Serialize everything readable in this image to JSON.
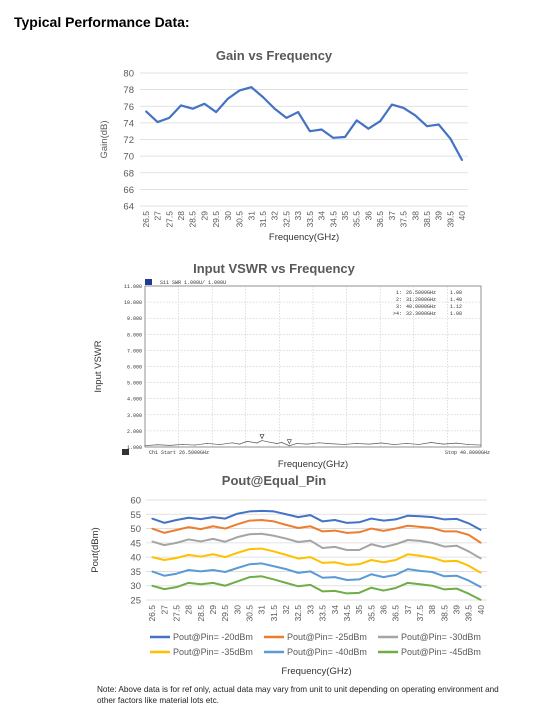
{
  "heading": "Typical Performance Data:",
  "note": "Note: Above data is for ref only, actual data may vary from unit to unit depending on operating environment and other factors like material lots etc.",
  "colors": {
    "gain_line": "#4472c4",
    "grid": "#d9d9d9",
    "axis_text": "#595959",
    "series": [
      "#4472c4",
      "#ed7d31",
      "#a5a5a5",
      "#ffc000",
      "#5b9bd5",
      "#70ad47"
    ]
  },
  "chart_data": [
    {
      "type": "line",
      "title": "Gain vs Frequency",
      "xlabel": "Frequency(GHz)",
      "ylabel": "Gain(dB)",
      "ylim": [
        64,
        80
      ],
      "yticks": [
        64,
        66,
        68,
        70,
        72,
        74,
        76,
        78,
        80
      ],
      "grid": true,
      "categories": [
        "26.5",
        "27",
        "27.5",
        "28",
        "28.5",
        "29",
        "29.5",
        "30",
        "30.5",
        "31",
        "31.5",
        "32",
        "32.5",
        "33",
        "33.5",
        "34",
        "34.5",
        "35",
        "35.5",
        "36",
        "36.5",
        "37",
        "37.5",
        "38",
        "38.5",
        "39",
        "39.5",
        "40"
      ],
      "series": [
        {
          "values": [
            75.4,
            74.1,
            74.6,
            76.1,
            75.7,
            76.3,
            75.3,
            76.9,
            77.9,
            78.3,
            77.1,
            75.7,
            74.6,
            75.3,
            73.0,
            73.2,
            72.2,
            72.3,
            74.3,
            73.3,
            74.2,
            76.2,
            75.8,
            74.9,
            73.6,
            73.8,
            72.1,
            69.5
          ]
        }
      ]
    },
    {
      "type": "line",
      "title": "Input VSWR vs Frequency",
      "xlabel": "Frequency(GHz)",
      "ylabel": "Input VSWR",
      "ylim": [
        1,
        11
      ],
      "yticks": [
        "1.000",
        "2.000",
        "3.000",
        "4.000",
        "5.000",
        "6.000",
        "7.000",
        "8.000",
        "9.000",
        "10.000",
        "11.000"
      ],
      "grid": true,
      "header": "S11 SWR 1.000U/ 1.000U",
      "start_label": "Ch1 Start 26.5000GHz",
      "stop_label": "Stop 40.0000GHz",
      "markers": [
        {
          "id": "1:",
          "freq": "26.5000GHz",
          "value": "1.08"
        },
        {
          "id": "2:",
          "freq": "31.2000GHz",
          "value": "1.40"
        },
        {
          "id": "3:",
          "freq": "40.0000GHz",
          "value": "1.12"
        },
        {
          "id": ">4:",
          "freq": "32.3000GHz",
          "value": "1.08"
        }
      ],
      "x": [
        26.5,
        27.0,
        27.5,
        28.0,
        28.5,
        29.0,
        29.5,
        30.0,
        30.3,
        30.6,
        31.0,
        31.2,
        31.5,
        31.8,
        32.0,
        32.3,
        32.6,
        33.0,
        33.5,
        34.0,
        34.5,
        35.0,
        35.5,
        36.0,
        36.5,
        37.0,
        37.5,
        38.0,
        38.5,
        39.0,
        39.5,
        40.0
      ],
      "series": [
        {
          "values": [
            1.08,
            1.14,
            1.1,
            1.16,
            1.12,
            1.22,
            1.15,
            1.26,
            1.18,
            1.35,
            1.25,
            1.4,
            1.3,
            1.22,
            1.28,
            1.08,
            1.22,
            1.18,
            1.26,
            1.2,
            1.16,
            1.22,
            1.18,
            1.25,
            1.15,
            1.22,
            1.16,
            1.28,
            1.18,
            1.24,
            1.15,
            1.12
          ]
        }
      ]
    },
    {
      "type": "line",
      "title": "Pout@Equal_Pin",
      "xlabel": "Frequency(GHz)",
      "ylabel": "Pout(dBm)",
      "ylim": [
        25,
        60
      ],
      "yticks": [
        25,
        30,
        35,
        40,
        45,
        50,
        55,
        60
      ],
      "grid": true,
      "categories": [
        "26.5",
        "27",
        "27.5",
        "28",
        "28.5",
        "29",
        "29.5",
        "30",
        "30.5",
        "31",
        "31.5",
        "32",
        "32.5",
        "33",
        "33.5",
        "34",
        "34.5",
        "35",
        "35.5",
        "36",
        "36.5",
        "37",
        "37.5",
        "38",
        "38.5",
        "39",
        "39.5",
        "40"
      ],
      "series": [
        {
          "name": "Pout@Pin= -20dBm",
          "values": [
            53.5,
            52.0,
            53.0,
            53.8,
            53.3,
            54.0,
            53.5,
            55.2,
            56.0,
            56.2,
            56.0,
            55.0,
            54.0,
            54.7,
            52.5,
            53.0,
            52.0,
            52.2,
            53.5,
            52.8,
            53.2,
            54.5,
            54.3,
            54.0,
            53.2,
            53.4,
            51.8,
            49.5
          ]
        },
        {
          "name": "Pout@Pin= -25dBm",
          "values": [
            50.0,
            48.5,
            49.5,
            50.5,
            49.8,
            50.8,
            50.0,
            51.5,
            52.8,
            53.0,
            52.5,
            51.3,
            50.2,
            50.8,
            49.0,
            49.3,
            48.5,
            48.7,
            50.0,
            49.2,
            50.0,
            51.0,
            50.6,
            50.2,
            49.0,
            49.0,
            47.8,
            45.0
          ]
        },
        {
          "name": "Pout@Pin= -30dBm",
          "values": [
            45.5,
            44.2,
            45.0,
            46.2,
            45.5,
            46.4,
            45.4,
            47.0,
            48.0,
            48.2,
            47.5,
            46.5,
            45.3,
            45.8,
            43.2,
            43.6,
            42.5,
            42.5,
            44.5,
            43.5,
            44.5,
            46.0,
            45.7,
            45.0,
            43.7,
            44.0,
            42.0,
            39.5
          ]
        },
        {
          "name": "Pout@Pin= -35dBm",
          "values": [
            40.0,
            39.0,
            39.7,
            40.8,
            40.2,
            41.0,
            40.0,
            41.5,
            42.8,
            43.0,
            42.0,
            40.8,
            39.5,
            40.0,
            38.0,
            38.2,
            37.3,
            37.5,
            39.0,
            38.2,
            39.0,
            41.0,
            40.5,
            39.8,
            38.5,
            38.7,
            37.0,
            34.5
          ]
        },
        {
          "name": "Pout@Pin= -40dBm",
          "values": [
            35.0,
            33.5,
            34.2,
            35.5,
            35.0,
            35.5,
            34.8,
            36.2,
            37.5,
            37.8,
            36.8,
            35.8,
            34.5,
            35.0,
            32.8,
            33.0,
            32.0,
            32.2,
            34.0,
            33.0,
            33.8,
            35.8,
            35.2,
            34.8,
            33.3,
            33.5,
            31.8,
            29.5
          ]
        },
        {
          "name": "Pout@Pin= -45dBm",
          "values": [
            30.0,
            28.8,
            29.5,
            31.0,
            30.5,
            31.0,
            30.0,
            31.5,
            33.0,
            33.3,
            32.2,
            31.0,
            29.8,
            30.3,
            28.0,
            28.2,
            27.3,
            27.5,
            29.3,
            28.3,
            29.2,
            31.0,
            30.5,
            30.0,
            28.7,
            29.0,
            27.2,
            25.0
          ]
        }
      ],
      "legend": "bottom"
    }
  ]
}
